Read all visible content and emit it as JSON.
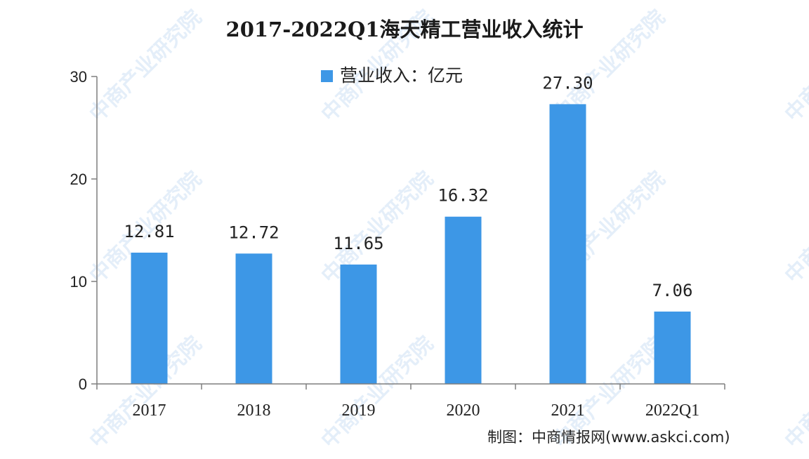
{
  "chart_data": {
    "type": "bar",
    "title": "2017-2022Q1海天精工营业收入统计",
    "categories": [
      "2017",
      "2018",
      "2019",
      "2020",
      "2021",
      "2022Q1"
    ],
    "series": [
      {
        "name": "营业收入：亿元",
        "values": [
          12.81,
          12.72,
          11.65,
          16.32,
          27.3,
          7.06
        ],
        "labels": [
          "12.81",
          "12.72",
          "11.65",
          "16.32",
          "27.30",
          "7.06"
        ],
        "color": "#3d97e6"
      }
    ],
    "yticks": [
      "0",
      "10",
      "20",
      "30"
    ],
    "ylim": [
      0,
      30
    ],
    "legend_position": "top",
    "grid": false,
    "source": "制图：中商情报网(www.askci.com)"
  },
  "watermark": {
    "text": "中商产业研究院"
  }
}
